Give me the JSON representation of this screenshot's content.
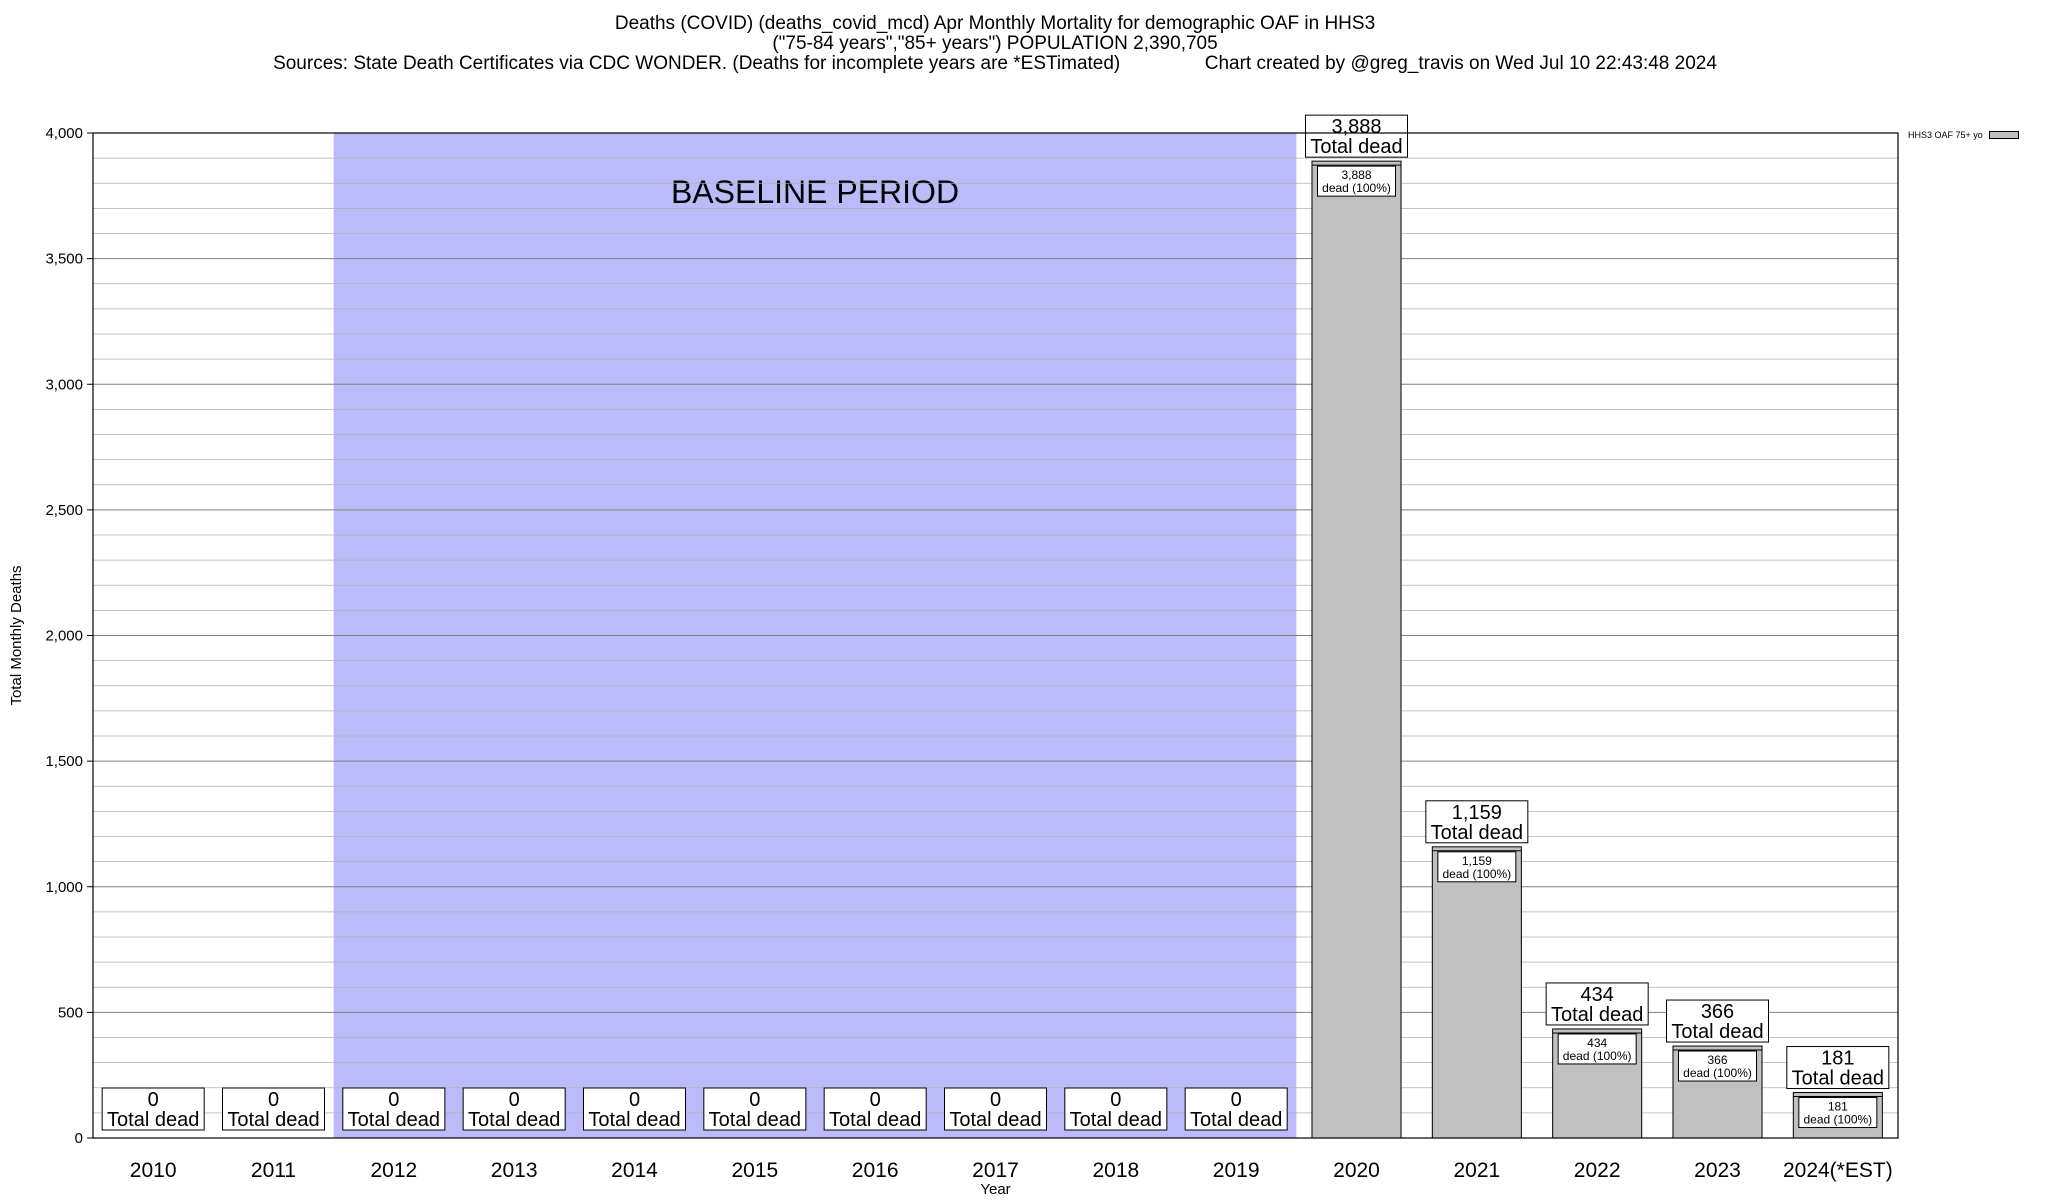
{
  "title_lines": [
    "Deaths (COVID) (deaths_covid_mcd) Apr Monthly Mortality for demographic OAF in HHS3",
    "(\"75-84 years\",\"85+ years\") POPULATION 2,390,705",
    "Sources: State Death Certificates via CDC WONDER. (Deaths for incomplete years are *ESTimated)                Chart created by @greg_travis on Wed Jul 10 22:43:48 2024"
  ],
  "legend_label": "HHS3 OAF 75+ yo",
  "colors": {
    "bar": "#c0c0c0",
    "baseline": "#bbbbfa",
    "grid": "#b0b0b0"
  },
  "chart_data": {
    "type": "bar",
    "xlabel": "Year",
    "ylabel": "Total Monthly Deaths",
    "ylim": [
      0,
      4000
    ],
    "yticks": [
      0,
      500,
      1000,
      1500,
      2000,
      2500,
      3000,
      3500,
      4000
    ],
    "ytick_labels": [
      "0",
      "500",
      "1,000",
      "1,500",
      "2,000",
      "2,500",
      "3,000",
      "3,500",
      "4,000"
    ],
    "grid": true,
    "legend_position": "top-right",
    "categories": [
      "2010",
      "2011",
      "2012",
      "2013",
      "2014",
      "2015",
      "2016",
      "2017",
      "2018",
      "2019",
      "2020",
      "2021",
      "2022",
      "2023",
      "2024(*EST)"
    ],
    "series": [
      {
        "name": "HHS3 OAF 75+ yo",
        "values": [
          0,
          0,
          0,
          0,
          0,
          0,
          0,
          0,
          0,
          0,
          3888,
          1159,
          434,
          366,
          181
        ]
      }
    ],
    "value_labels": [
      "0",
      "0",
      "0",
      "0",
      "0",
      "0",
      "0",
      "0",
      "0",
      "0",
      "3,888",
      "1,159",
      "434",
      "366",
      "181"
    ],
    "total_label": "Total dead",
    "inner_label_suffix": "dead (100%)",
    "baseline_band": {
      "label": "BASELINE PERIOD",
      "from": "2012",
      "to": "2019"
    }
  }
}
